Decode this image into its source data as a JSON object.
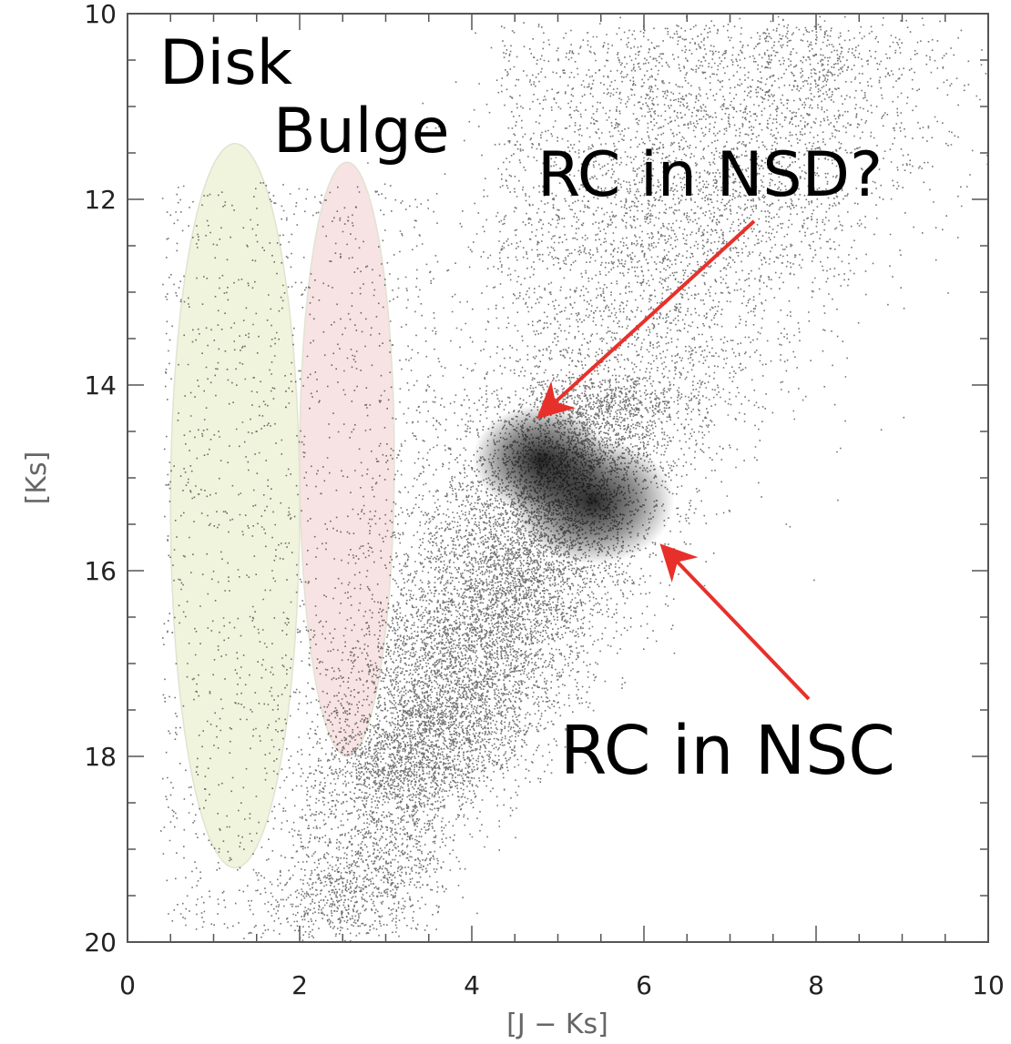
{
  "chart_data": {
    "type": "scatter",
    "title": "",
    "xlabel": "[J − Ks]",
    "ylabel": "[Ks]",
    "xlim": [
      0,
      10
    ],
    "ylim": [
      20,
      10
    ],
    "y_inverted": true,
    "xticks": [
      "0",
      "2",
      "4",
      "6",
      "8",
      "10"
    ],
    "yticks": [
      "10",
      "12",
      "14",
      "16",
      "18",
      "20"
    ],
    "grid": false,
    "legend": "none",
    "point_color": "#000000",
    "regions": [
      {
        "label": "Disk",
        "center_x": 1.25,
        "center_y": 15.3,
        "half_width_x": 0.75,
        "half_height_y": 3.9,
        "color": "#f1f4dc"
      },
      {
        "label": "Bulge",
        "center_x": 2.55,
        "center_y": 14.8,
        "half_width_x": 0.55,
        "half_height_y": 3.2,
        "color": "#f7e3e3"
      }
    ],
    "annotations": [
      {
        "text": "RC in NSD?",
        "points_to": [
          4.7,
          14.4
        ],
        "arrow_color": "#e8302a"
      },
      {
        "text": "RC in NSC",
        "points_to": [
          6.1,
          15.6
        ],
        "arrow_color": "#e8302a"
      }
    ],
    "density_clumps": [
      {
        "name": "RC in NSC clump",
        "x": 5.4,
        "y": 15.25
      },
      {
        "name": "RC in NSD clump",
        "x": 4.8,
        "y": 14.8
      }
    ]
  }
}
